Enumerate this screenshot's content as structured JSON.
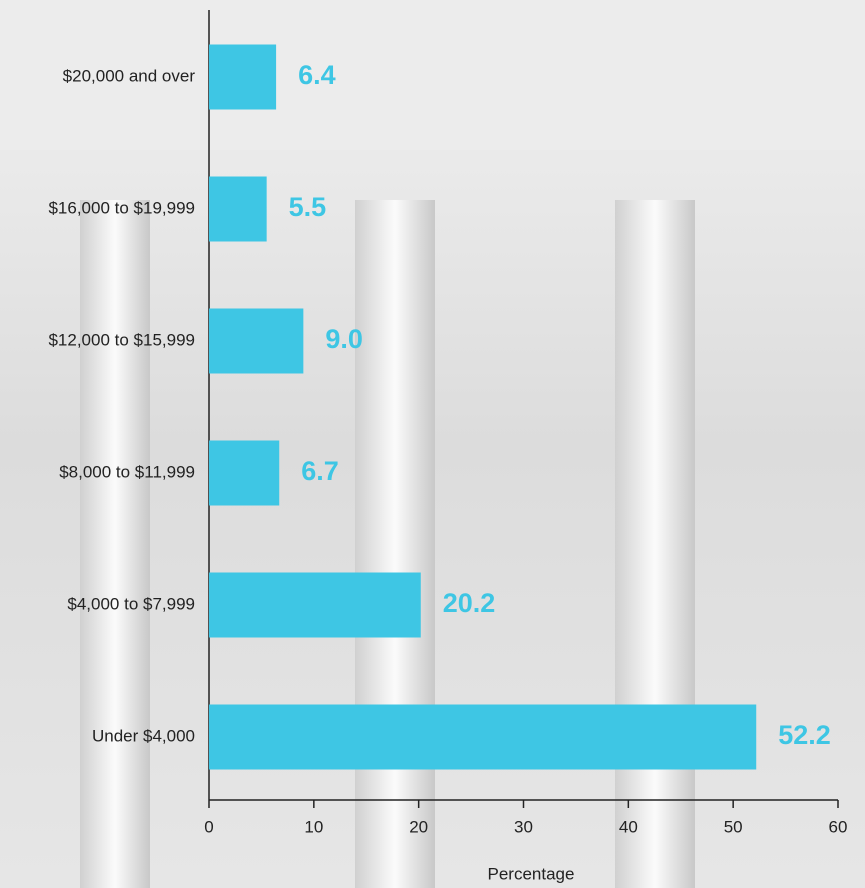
{
  "chart_data": {
    "type": "hbar",
    "categories": [
      "$20,000 and over",
      "$16,000 to $19,999",
      "$12,000 to $15,999",
      "$8,000 to $11,999",
      "$4,000 to $7,999",
      "Under $4,000"
    ],
    "values": [
      6.4,
      5.5,
      9.0,
      6.7,
      20.2,
      52.2
    ],
    "value_labels": [
      "6.4",
      "5.5",
      "9.0",
      "6.7",
      "20.2",
      "52.2"
    ],
    "color": "#3ec6e4",
    "xlabel": "Percentage",
    "xlim": [
      0,
      60
    ],
    "xticks": [
      0,
      10,
      20,
      30,
      40,
      50,
      60
    ]
  }
}
